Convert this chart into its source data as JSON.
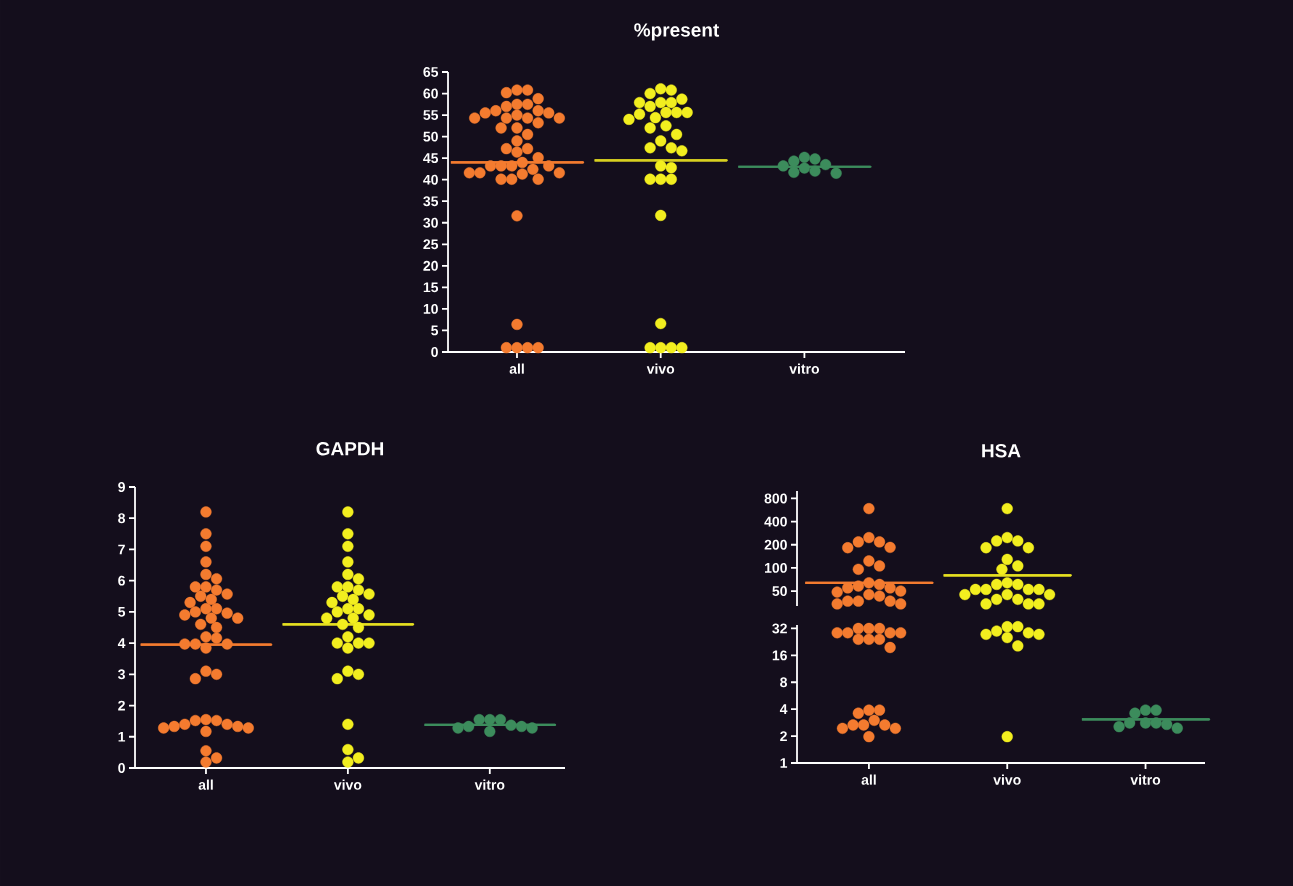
{
  "chart_data": [
    {
      "type": "scatter",
      "title": "%present",
      "categories": [
        "all",
        "vivo",
        "vitro"
      ],
      "marker": "circle",
      "ylim": [
        0,
        65
      ],
      "yticks": [
        0,
        5,
        10,
        15,
        20,
        25,
        30,
        35,
        40,
        45,
        50,
        55,
        60,
        65
      ],
      "series": [
        {
          "type": "scatter",
          "color": "#f47b2f",
          "x": [
            "all",
            "all",
            "all",
            "all",
            "all",
            "all",
            "all",
            "all",
            "all",
            "all",
            "all",
            "all",
            "all",
            "all",
            "all",
            "all",
            "all",
            "all",
            "all",
            "all",
            "all",
            "all",
            "all",
            "all",
            "all",
            "all",
            "all",
            "all",
            "all",
            "all",
            "all",
            "all",
            "all",
            "all",
            "all",
            "all",
            "all",
            "all",
            "all",
            "all",
            "all",
            "all",
            "all",
            "all"
          ],
          "values": [
            60.8,
            60.8,
            60.2,
            58.8,
            57.5,
            57.5,
            57,
            56,
            56,
            55.5,
            55.5,
            55,
            54.3,
            54.3,
            54.3,
            54.3,
            53.2,
            52,
            52,
            50.5,
            49,
            47.2,
            47.2,
            46.4,
            45.1,
            44,
            43.2,
            43.2,
            43.2,
            43.2,
            42.4,
            41.6,
            41.6,
            41.6,
            41.3,
            40.1,
            40.1,
            40.1,
            31.6,
            6.4,
            1,
            1,
            1,
            1
          ]
        },
        {
          "type": "scatter",
          "color": "#f2ee1f",
          "x": [
            "vivo",
            "vivo",
            "vivo",
            "vivo",
            "vivo",
            "vivo",
            "vivo",
            "vivo",
            "vivo",
            "vivo",
            "vivo",
            "vivo",
            "vivo",
            "vivo",
            "vivo",
            "vivo",
            "vivo",
            "vivo",
            "vivo",
            "vivo",
            "vivo",
            "vivo",
            "vivo",
            "vivo",
            "vivo",
            "vivo",
            "vivo",
            "vivo",
            "vivo",
            "vivo",
            "vivo",
            "vivo"
          ],
          "values": [
            61.1,
            60.8,
            60,
            58.7,
            57.9,
            57.9,
            57.9,
            57,
            55.6,
            55.6,
            55.6,
            55.2,
            54.4,
            54,
            52.5,
            52,
            50.5,
            49,
            47.4,
            47.4,
            46.7,
            43.2,
            42.8,
            40.1,
            40.1,
            40.1,
            31.7,
            6.6,
            1,
            1,
            1,
            1
          ]
        },
        {
          "type": "scatter",
          "color": "#3c8c5c",
          "x": [
            "vitro",
            "vitro",
            "vitro",
            "vitro",
            "vitro",
            "vitro",
            "vitro",
            "vitro",
            "vitro"
          ],
          "values": [
            43.2,
            44.8,
            41.7,
            45.2,
            41.5,
            44.3,
            42,
            43.5,
            42.7
          ]
        },
        {
          "type": "box",
          "colors": [
            "#f47b2f",
            "#d8d020",
            "#3c8c5c"
          ],
          "boxes": [
            {
              "low": 44,
              "q1": 44,
              "median": 44,
              "q3": 44,
              "high": 44
            },
            {
              "low": 44.5,
              "q1": 44.5,
              "median": 44.5,
              "q3": 44.5,
              "high": 44.5
            },
            {
              "low": 43,
              "q1": 43,
              "median": 43,
              "q3": 43,
              "high": 43
            }
          ]
        }
      ]
    },
    {
      "type": "scatter",
      "title": "GAPDH",
      "categories": [
        "all",
        "vivo",
        "vitro"
      ],
      "marker": "circle",
      "ylim": [
        0,
        9
      ],
      "yticks": [
        0,
        1,
        2,
        3,
        4,
        5,
        6,
        7,
        8,
        9
      ],
      "series": [
        {
          "type": "scatter",
          "color": "#f47b2f",
          "x": [
            "all",
            "all",
            "all",
            "all",
            "all",
            "all",
            "all",
            "all",
            "all",
            "all",
            "all",
            "all",
            "all",
            "all",
            "all",
            "all",
            "all",
            "all",
            "all",
            "all",
            "all",
            "all",
            "all",
            "all",
            "all",
            "all",
            "all",
            "all",
            "all",
            "all",
            "all",
            "all",
            "all",
            "all",
            "all",
            "all",
            "all",
            "all",
            "all",
            "all",
            "all",
            "all",
            "all",
            "all"
          ],
          "values": [
            8.2,
            7.5,
            7.1,
            6.6,
            6.2,
            6.06,
            5.8,
            5.8,
            5.7,
            5.57,
            5.5,
            5.4,
            5.3,
            5.1,
            5.1,
            5.0,
            4.96,
            4.9,
            4.8,
            4.8,
            4.6,
            4.5,
            4.2,
            4.16,
            3.97,
            3.97,
            3.97,
            3.84,
            3.1,
            3.0,
            2.86,
            1.52,
            1.52,
            1.55,
            1.4,
            1.4,
            1.33,
            1.33,
            1.28,
            1.17,
            1.28,
            0.55,
            0.32,
            0.19
          ]
        },
        {
          "type": "scatter",
          "color": "#f2ee1f",
          "x": [
            "vivo",
            "vivo",
            "vivo",
            "vivo",
            "vivo",
            "vivo",
            "vivo",
            "vivo",
            "vivo",
            "vivo",
            "vivo",
            "vivo",
            "vivo",
            "vivo",
            "vivo",
            "vivo",
            "vivo",
            "vivo",
            "vivo",
            "vivo",
            "vivo",
            "vivo",
            "vivo",
            "vivo",
            "vivo",
            "vivo",
            "vivo",
            "vivo",
            "vivo",
            "vivo",
            "vivo",
            "vivo",
            "vivo"
          ],
          "values": [
            8.2,
            7.5,
            7.1,
            6.6,
            6.2,
            6.06,
            5.8,
            5.8,
            5.7,
            5.57,
            5.5,
            5.4,
            5.3,
            5.1,
            5.1,
            5.0,
            4.9,
            4.8,
            4.8,
            4.6,
            4.5,
            4.2,
            4.0,
            4.0,
            4.0,
            3.84,
            3.1,
            3.0,
            2.86,
            1.4,
            0.59,
            0.32,
            0.19
          ]
        },
        {
          "type": "scatter",
          "color": "#3c8c5c",
          "x": [
            "vitro",
            "vitro",
            "vitro",
            "vitro",
            "vitro",
            "vitro",
            "vitro",
            "vitro",
            "vitro"
          ],
          "values": [
            1.37,
            1.55,
            1.28,
            1.55,
            1.17,
            1.33,
            1.28,
            1.55,
            1.33
          ]
        },
        {
          "type": "box",
          "colors": [
            "#f47b2f",
            "#e6e020",
            "#3c8c5c"
          ],
          "boxes": [
            {
              "low": 3.95,
              "q1": 3.95,
              "median": 3.95,
              "q3": 3.95,
              "high": 3.95
            },
            {
              "low": 4.6,
              "q1": 4.6,
              "median": 4.6,
              "q3": 4.6,
              "high": 4.6
            },
            {
              "low": 1.38,
              "q1": 1.38,
              "median": 1.38,
              "q3": 1.38,
              "high": 1.38
            }
          ]
        }
      ]
    },
    {
      "type": "scatter",
      "title": "HSA",
      "categories": [
        "all",
        "vivo",
        "vitro"
      ],
      "marker": "circle",
      "log": "y",
      "tick_labels": "y",
      "ylim": [
        32,
        1000
      ],
      "yticks": [
        50,
        100,
        200,
        400,
        800
      ],
      "series": [
        {
          "type": "scatter",
          "color": "#f47b2f",
          "x": [
            "all",
            "all",
            "all",
            "all",
            "all",
            "all",
            "all",
            "all",
            "all",
            "all",
            "all",
            "all",
            "all",
            "all",
            "all",
            "all",
            "all",
            "all",
            "all",
            "all",
            "all",
            "all",
            "all"
          ],
          "values": [
            590,
            248,
            218,
            218,
            183,
            185,
            123,
            106,
            96,
            64,
            61,
            58,
            55,
            55,
            48.5,
            50,
            45,
            43,
            37,
            37,
            37,
            34,
            34
          ]
        },
        {
          "type": "scatter",
          "color": "#f2ee1f",
          "x": [
            "vivo",
            "vivo",
            "vivo",
            "vivo",
            "vivo",
            "vivo",
            "vivo",
            "vivo",
            "vivo",
            "vivo",
            "vivo",
            "vivo",
            "vivo",
            "vivo",
            "vivo",
            "vivo",
            "vivo",
            "vivo",
            "vivo",
            "vivo",
            "vivo",
            "vivo",
            "vivo",
            "vivo"
          ],
          "values": [
            590,
            248,
            224,
            224,
            183,
            183,
            129,
            106,
            96,
            64,
            61,
            61,
            52.5,
            52.5,
            52.5,
            52.5,
            45,
            45,
            45,
            39,
            39,
            34,
            34,
            34
          ]
        },
        {
          "type": "box",
          "colors": [
            "#f47b2f",
            "#e6e020",
            null
          ],
          "boxes": [
            {
              "low": 64,
              "q1": 64,
              "median": 64,
              "q3": 64,
              "high": 64
            },
            {
              "low": 80,
              "q1": 80,
              "median": 80,
              "q3": 80,
              "high": 80
            },
            null
          ]
        }
      ]
    },
    {
      "type": "scatter",
      "categories": [
        "all",
        "vivo",
        "vitro"
      ],
      "marker": "circle",
      "log": "y",
      "ylim": [
        1,
        35
      ],
      "yticks": [
        1,
        2,
        4,
        8,
        16,
        32
      ],
      "series": [
        {
          "type": "scatter",
          "color": "#f47b2f",
          "x": [
            "all",
            "all",
            "all",
            "all",
            "all",
            "all",
            "all",
            "all",
            "all",
            "all",
            "all",
            "all",
            "all",
            "all",
            "all",
            "all",
            "all",
            "all",
            "all",
            "all",
            "all"
          ],
          "values": [
            32,
            32,
            32,
            28.6,
            28.6,
            28.6,
            28.6,
            24.2,
            24.2,
            24.2,
            19.6,
            3.9,
            3.9,
            3.6,
            3,
            2.66,
            2.66,
            2.66,
            2.44,
            2.44,
            1.97
          ]
        },
        {
          "type": "scatter",
          "color": "#f2ee1f",
          "x": [
            "vivo",
            "vivo",
            "vivo",
            "vivo",
            "vivo",
            "vivo",
            "vivo",
            "vivo",
            "vivo"
          ],
          "values": [
            33.5,
            33.5,
            29.9,
            28.6,
            27.5,
            27.5,
            25.3,
            20.4,
            1.97
          ]
        },
        {
          "type": "scatter",
          "color": "#3c8c5c",
          "x": [
            "vitro",
            "vitro",
            "vitro",
            "vitro",
            "vitro",
            "vitro",
            "vitro",
            "vitro",
            "vitro"
          ],
          "values": [
            3.9,
            3.9,
            3.6,
            2.8,
            2.7,
            2.55,
            2.8,
            2.45,
            2.8
          ]
        },
        {
          "type": "box",
          "colors": [
            null,
            null,
            "#3c8c5c"
          ],
          "boxes": [
            null,
            null,
            {
              "low": 3.07,
              "q1": 3.07,
              "median": 3.07,
              "q3": 3.07,
              "high": 3.07
            }
          ]
        }
      ]
    }
  ]
}
